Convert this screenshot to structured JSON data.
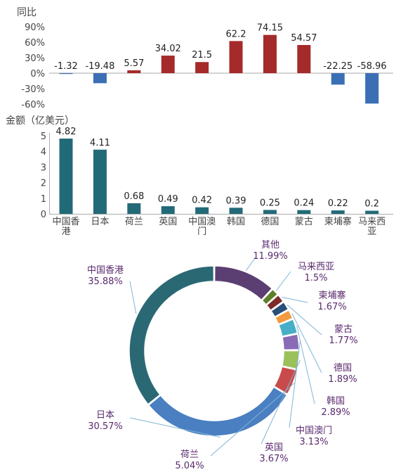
{
  "chart_data": [
    {
      "type": "bar",
      "ylabel": "同比",
      "categories": [
        "中国香港",
        "日本",
        "荷兰",
        "英国",
        "中国澳门",
        "韩国",
        "德国",
        "蒙古",
        "柬埔寨",
        "马来西亚"
      ],
      "values": [
        -1.32,
        -19.48,
        5.57,
        34.02,
        21.5,
        62.2,
        74.15,
        54.57,
        -22.25,
        -58.96
      ],
      "value_labels": [
        "-1.32",
        "-19.48",
        "5.57",
        "34.02",
        "21.5",
        "62.2",
        "74.15",
        "54.57",
        "-22.25",
        "-58.96"
      ],
      "ylim": [
        -60,
        90
      ],
      "yticks": [
        "90%",
        "60%",
        "30%",
        "0%",
        "-30%",
        "-60%"
      ],
      "colors": {
        "positive": "#a52a2a",
        "negative": "#3a6fb5"
      }
    },
    {
      "type": "bar",
      "ylabel": "金额（亿美元）",
      "categories": [
        "中国香港",
        "日本",
        "荷兰",
        "英国",
        "中国澳门",
        "韩国",
        "德国",
        "蒙古",
        "柬埔寨",
        "马来西亚"
      ],
      "category_lines": [
        [
          "中国香",
          "港"
        ],
        [
          "日本"
        ],
        [
          "荷兰"
        ],
        [
          "英国"
        ],
        [
          "中国澳",
          "门"
        ],
        [
          "韩国"
        ],
        [
          "德国"
        ],
        [
          "蒙古"
        ],
        [
          "柬埔寨"
        ],
        [
          "马来西",
          "亚"
        ]
      ],
      "values": [
        4.82,
        4.11,
        0.68,
        0.49,
        0.42,
        0.39,
        0.25,
        0.24,
        0.22,
        0.2
      ],
      "value_labels": [
        "4.82",
        "4.11",
        "0.68",
        "0.49",
        "0.42",
        "0.39",
        "0.25",
        "0.24",
        "0.22",
        "0.2"
      ],
      "ylim": [
        0,
        5
      ],
      "yticks": [
        "5",
        "4",
        "3",
        "2",
        "1",
        "0"
      ],
      "colors": {
        "bar": "#236a78"
      }
    },
    {
      "type": "pie",
      "donut": true,
      "slices": [
        {
          "name": "其他",
          "value": 11.99,
          "label": "11.99%",
          "color": "#5c3f72"
        },
        {
          "name": "马来西亚",
          "value": 1.5,
          "label": "1.5%",
          "color": "#5f7f2a"
        },
        {
          "name": "柬埔寨",
          "value": 1.67,
          "label": "1.67%",
          "color": "#7d2a2a"
        },
        {
          "name": "蒙古",
          "value": 1.77,
          "label": "1.77%",
          "color": "#284e7a"
        },
        {
          "name": "德国",
          "value": 1.89,
          "label": "1.89%",
          "color": "#f39a3f"
        },
        {
          "name": "韩国",
          "value": 2.89,
          "label": "2.89%",
          "color": "#46aec6"
        },
        {
          "name": "中国澳门",
          "value": 3.13,
          "label": "3.13%",
          "color": "#8a6bb5"
        },
        {
          "name": "英国",
          "value": 3.67,
          "label": "3.67%",
          "color": "#9bc15a"
        },
        {
          "name": "荷兰",
          "value": 5.04,
          "label": "5.04%",
          "color": "#c94a4a"
        },
        {
          "name": "日本",
          "value": 30.57,
          "label": "30.57%",
          "color": "#4a7fc1"
        },
        {
          "name": "中国香港",
          "value": 35.88,
          "label": "35.88%",
          "color": "#2a6874"
        }
      ]
    }
  ]
}
